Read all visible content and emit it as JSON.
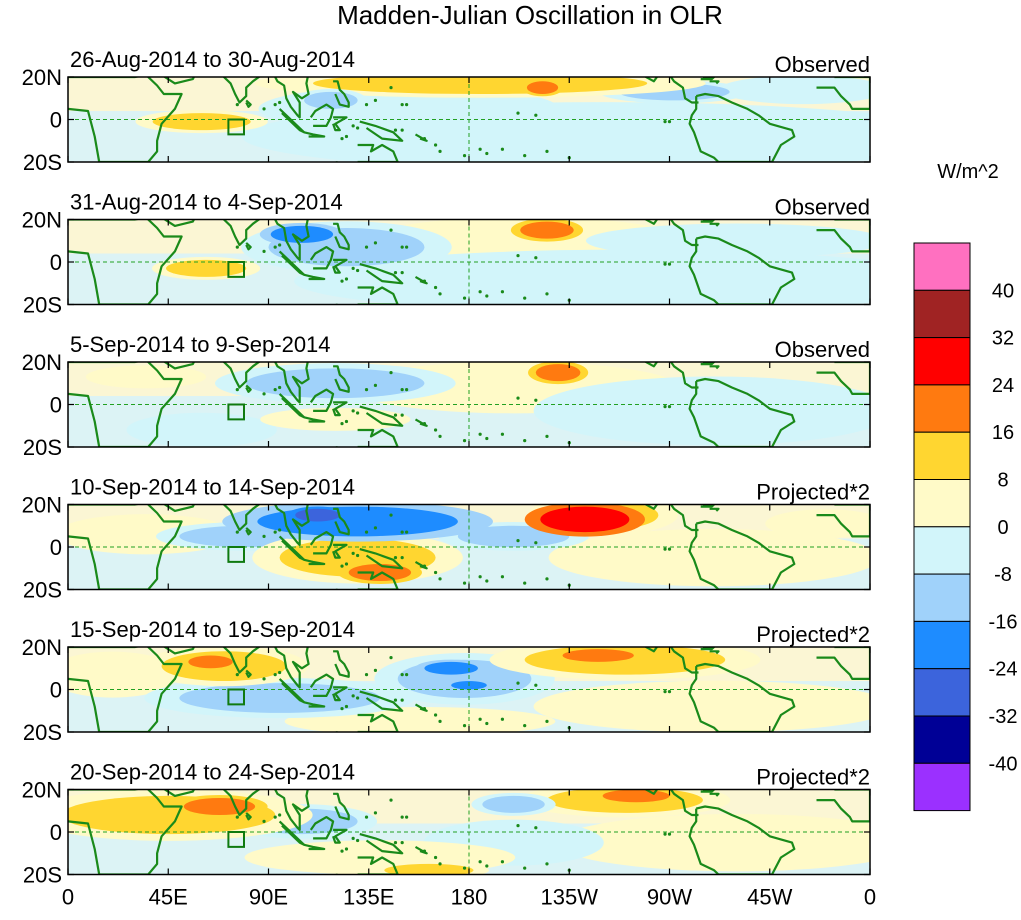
{
  "figure": {
    "title": "Madden-Julian Oscillation in OLR",
    "units": "W/m^2"
  },
  "colors": {
    "land": "#1a8a1a",
    "frame": "#000000",
    "guide": "#22a022",
    "box": "#0f7a0f"
  },
  "chart_data": {
    "type": "heatmap",
    "variable": "OLR anomaly",
    "units": "W/m^2",
    "lon_range": [
      0,
      360
    ],
    "lat_range": [
      -20,
      20
    ],
    "x_ticks": [
      {
        "lon": 0,
        "label": "0"
      },
      {
        "lon": 45,
        "label": "45E"
      },
      {
        "lon": 90,
        "label": "90E"
      },
      {
        "lon": 135,
        "label": "135E"
      },
      {
        "lon": 180,
        "label": "180"
      },
      {
        "lon": 225,
        "label": "135W"
      },
      {
        "lon": 270,
        "label": "90W"
      },
      {
        "lon": 315,
        "label": "45W"
      },
      {
        "lon": 360,
        "label": "0"
      }
    ],
    "y_ticks": [
      {
        "lat": 20,
        "label": "20N"
      },
      {
        "lat": 0,
        "label": "0"
      },
      {
        "lat": -20,
        "label": "20S"
      }
    ],
    "colorbar": {
      "levels": [
        "40",
        "32",
        "24",
        "16",
        "8",
        "0",
        "-8",
        "-16",
        "-24",
        "-32",
        "-40"
      ],
      "colors": [
        "#ff70c0",
        "#a02323",
        "#ff0000",
        "#ff7a10",
        "#ffd630",
        "#fffac8",
        "#d2f5fa",
        "#a0d2fa",
        "#1e8cff",
        "#3c64dc",
        "#000096",
        "#9b30ff"
      ]
    },
    "panels": [
      {
        "period": "26-Aug-2014 to 30-Aug-2014",
        "kind": "Observed",
        "blobs": [
          {
            "lon": 153,
            "lat": 5,
            "rx": 50,
            "ry": 8,
            "v": -7
          },
          {
            "lon": 118,
            "lat": 9,
            "rx": 12,
            "ry": 4,
            "v": -15
          },
          {
            "lon": 60,
            "lat": -1,
            "rx": 22,
            "ry": 4,
            "v": 9
          },
          {
            "lon": 185,
            "lat": 17,
            "rx": 75,
            "ry": 5,
            "v": 9
          },
          {
            "lon": 213,
            "lat": 15,
            "rx": 7,
            "ry": 3,
            "v": 18
          },
          {
            "lon": 272,
            "lat": 13,
            "rx": 25,
            "ry": 4,
            "v": -8
          },
          {
            "lon": 330,
            "lat": 14,
            "rx": 28,
            "ry": 5,
            "v": -6
          },
          {
            "lon": 240,
            "lat": -8,
            "rx": 120,
            "ry": 12,
            "v": -6
          }
        ]
      },
      {
        "period": "31-Aug-2014 to 4-Sep-2014",
        "kind": "Observed",
        "blobs": [
          {
            "lon": 125,
            "lat": 7,
            "rx": 35,
            "ry": 9,
            "v": -12
          },
          {
            "lon": 105,
            "lat": 13,
            "rx": 14,
            "ry": 4,
            "v": -18
          },
          {
            "lon": 62,
            "lat": -3,
            "rx": 18,
            "ry": 4,
            "v": 9
          },
          {
            "lon": 215,
            "lat": 15,
            "rx": 12,
            "ry": 4,
            "v": 18
          },
          {
            "lon": 205,
            "lat": 9,
            "rx": 55,
            "ry": 9,
            "v": 5
          },
          {
            "lon": 300,
            "lat": 10,
            "rx": 50,
            "ry": 6,
            "v": -6
          },
          {
            "lon": 250,
            "lat": -9,
            "rx": 110,
            "ry": 11,
            "v": -6
          }
        ]
      },
      {
        "period": "5-Sep-2014 to 9-Sep-2014",
        "kind": "Observed",
        "blobs": [
          {
            "lon": 120,
            "lat": 10,
            "rx": 40,
            "ry": 7,
            "v": -10
          },
          {
            "lon": 35,
            "lat": 13,
            "rx": 20,
            "ry": 4,
            "v": 4
          },
          {
            "lon": 220,
            "lat": 15,
            "rx": 10,
            "ry": 4,
            "v": 19
          },
          {
            "lon": 200,
            "lat": 8,
            "rx": 55,
            "ry": 9,
            "v": 5
          },
          {
            "lon": 120,
            "lat": -7,
            "rx": 25,
            "ry": 4,
            "v": 7
          },
          {
            "lon": 290,
            "lat": -3,
            "rx": 60,
            "ry": 12,
            "v": -6
          },
          {
            "lon": 60,
            "lat": -12,
            "rx": 25,
            "ry": 6,
            "v": -5
          }
        ]
      },
      {
        "period": "10-Sep-2014 to 14-Sep-2014",
        "kind": "Projected*2",
        "blobs": [
          {
            "lon": 130,
            "lat": 12,
            "rx": 45,
            "ry": 7,
            "v": -17
          },
          {
            "lon": 112,
            "lat": 15,
            "rx": 10,
            "ry": 3,
            "v": -26
          },
          {
            "lon": 80,
            "lat": 5,
            "rx": 30,
            "ry": 5,
            "v": -9
          },
          {
            "lon": 35,
            "lat": 6,
            "rx": 30,
            "ry": 7,
            "v": 7
          },
          {
            "lon": 130,
            "lat": -5,
            "rx": 35,
            "ry": 9,
            "v": 12
          },
          {
            "lon": 140,
            "lat": -12,
            "rx": 14,
            "ry": 4,
            "v": 20
          },
          {
            "lon": 232,
            "lat": 13,
            "rx": 20,
            "ry": 6,
            "v": 30
          },
          {
            "lon": 240,
            "lat": 15,
            "rx": 25,
            "ry": 7,
            "v": 10
          },
          {
            "lon": 200,
            "lat": 5,
            "rx": 25,
            "ry": 5,
            "v": -10
          },
          {
            "lon": 290,
            "lat": -5,
            "rx": 55,
            "ry": 10,
            "v": 4
          },
          {
            "lon": 340,
            "lat": 11,
            "rx": 20,
            "ry": 5,
            "v": 7
          }
        ]
      },
      {
        "period": "15-Sep-2014 to 19-Sep-2014",
        "kind": "Projected*2",
        "blobs": [
          {
            "lon": 70,
            "lat": 11,
            "rx": 28,
            "ry": 7,
            "v": 11
          },
          {
            "lon": 64,
            "lat": 13,
            "rx": 10,
            "ry": 3,
            "v": 18
          },
          {
            "lon": 20,
            "lat": 7,
            "rx": 22,
            "ry": 8,
            "v": 6
          },
          {
            "lon": 95,
            "lat": -4,
            "rx": 45,
            "ry": 7,
            "v": -9
          },
          {
            "lon": 178,
            "lat": 5,
            "rx": 30,
            "ry": 9,
            "v": -9
          },
          {
            "lon": 172,
            "lat": 10,
            "rx": 12,
            "ry": 3,
            "v": -18
          },
          {
            "lon": 180,
            "lat": 2,
            "rx": 8,
            "ry": 2,
            "v": -20
          },
          {
            "lon": 250,
            "lat": 14,
            "rx": 45,
            "ry": 7,
            "v": 12
          },
          {
            "lon": 238,
            "lat": 16,
            "rx": 16,
            "ry": 3,
            "v": 24
          },
          {
            "lon": 158,
            "lat": -15,
            "rx": 45,
            "ry": 5,
            "v": 8
          },
          {
            "lon": 290,
            "lat": -8,
            "rx": 60,
            "ry": 9,
            "v": 3
          }
        ]
      },
      {
        "period": "20-Sep-2014 to 24-Sep-2014",
        "kind": "Projected*2",
        "blobs": [
          {
            "lon": 45,
            "lat": 8,
            "rx": 48,
            "ry": 9,
            "v": 10
          },
          {
            "lon": 68,
            "lat": 12,
            "rx": 16,
            "ry": 4,
            "v": 18
          },
          {
            "lon": 105,
            "lat": 5,
            "rx": 25,
            "ry": 6,
            "v": -8
          },
          {
            "lon": 140,
            "lat": -12,
            "rx": 45,
            "ry": 6,
            "v": 6
          },
          {
            "lon": 162,
            "lat": -18,
            "rx": 20,
            "ry": 3,
            "v": 10
          },
          {
            "lon": 200,
            "lat": 13,
            "rx": 14,
            "ry": 4,
            "v": -15
          },
          {
            "lon": 250,
            "lat": 15,
            "rx": 35,
            "ry": 6,
            "v": 12
          },
          {
            "lon": 255,
            "lat": 17,
            "rx": 15,
            "ry": 3,
            "v": 18
          },
          {
            "lon": 300,
            "lat": -5,
            "rx": 60,
            "ry": 10,
            "v": 3
          },
          {
            "lon": 200,
            "lat": -5,
            "rx": 30,
            "ry": 8,
            "v": -5
          }
        ]
      }
    ]
  }
}
